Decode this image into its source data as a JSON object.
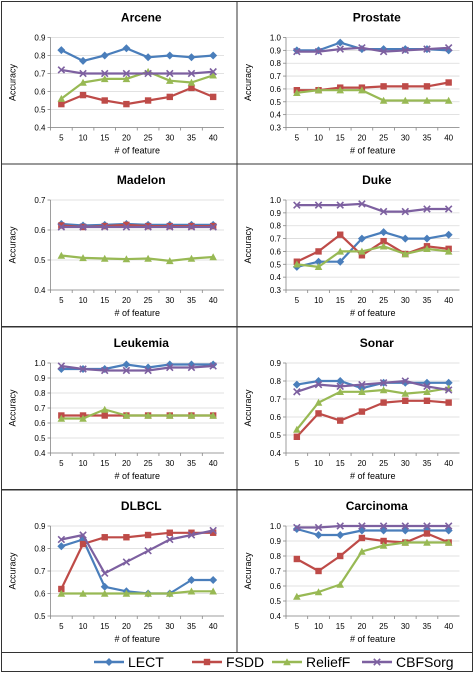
{
  "colors": {
    "LECT": "#4a7ebb",
    "FSDD": "#be4b48",
    "ReliefF": "#98b954",
    "CBFSorg": "#7d60a0",
    "border": "#333333",
    "grid": "#d9d9d9",
    "axis": "#868686"
  },
  "legend": {
    "entries": [
      "LECT",
      "FSDD",
      "ReliefF",
      "CBFSorg"
    ],
    "placement": "bottom"
  },
  "chart_data": [
    {
      "type": "line",
      "title": "Arcene",
      "xlabel": "# of feature",
      "ylabel": "Accuracy",
      "x": [
        "5",
        "10",
        "15",
        "20",
        "25",
        "30",
        "35",
        "40"
      ],
      "ylim": [
        0.4,
        0.9
      ],
      "yticks": [
        "0.4",
        "0.5",
        "0.6",
        "0.7",
        "0.8",
        "0.9"
      ],
      "grid": true,
      "series": [
        {
          "name": "LECT",
          "values": [
            0.83,
            0.77,
            0.8,
            0.84,
            0.79,
            0.8,
            0.79,
            0.8
          ]
        },
        {
          "name": "FSDD",
          "values": [
            0.53,
            0.58,
            0.55,
            0.53,
            0.55,
            0.57,
            0.62,
            0.57
          ]
        },
        {
          "name": "ReliefF",
          "values": [
            0.56,
            0.65,
            0.67,
            0.67,
            0.71,
            0.66,
            0.65,
            0.69
          ]
        },
        {
          "name": "CBFSorg",
          "values": [
            0.72,
            0.7,
            0.7,
            0.7,
            0.7,
            0.7,
            0.7,
            0.71
          ]
        }
      ]
    },
    {
      "type": "line",
      "title": "Prostate",
      "xlabel": "# of feature",
      "ylabel": "Accuracy",
      "x": [
        "5",
        "10",
        "15",
        "20",
        "25",
        "30",
        "35",
        "40"
      ],
      "ylim": [
        0.3,
        1.0
      ],
      "yticks": [
        "0.3",
        "0.4",
        "0.5",
        "0.6",
        "0.7",
        "0.8",
        "0.9",
        "1.0"
      ],
      "grid": true,
      "series": [
        {
          "name": "LECT",
          "values": [
            0.9,
            0.9,
            0.96,
            0.91,
            0.91,
            0.91,
            0.91,
            0.9
          ]
        },
        {
          "name": "FSDD",
          "values": [
            0.59,
            0.59,
            0.61,
            0.61,
            0.62,
            0.62,
            0.62,
            0.65
          ]
        },
        {
          "name": "ReliefF",
          "values": [
            0.57,
            0.59,
            0.59,
            0.59,
            0.51,
            0.51,
            0.51,
            0.51
          ]
        },
        {
          "name": "CBFSorg",
          "values": [
            0.89,
            0.89,
            0.91,
            0.92,
            0.89,
            0.9,
            0.91,
            0.92
          ]
        }
      ]
    },
    {
      "type": "line",
      "title": "Madelon",
      "xlabel": "# of feature",
      "ylabel": "Accuracy",
      "x": [
        "5",
        "10",
        "15",
        "20",
        "25",
        "30",
        "35",
        "40"
      ],
      "ylim": [
        0.4,
        0.7
      ],
      "yticks": [
        "0.4",
        "0.5",
        "0.6",
        "0.7"
      ],
      "grid": true,
      "series": [
        {
          "name": "LECT",
          "values": [
            0.62,
            0.615,
            0.617,
            0.62,
            0.617,
            0.617,
            0.617,
            0.617
          ]
        },
        {
          "name": "FSDD",
          "values": [
            0.615,
            0.61,
            0.613,
            0.617,
            0.613,
            0.613,
            0.613,
            0.613
          ]
        },
        {
          "name": "ReliefF",
          "values": [
            0.515,
            0.507,
            0.505,
            0.503,
            0.505,
            0.497,
            0.505,
            0.51
          ]
        },
        {
          "name": "CBFSorg",
          "values": [
            0.61,
            0.61,
            0.61,
            0.61,
            0.61,
            0.61,
            0.61,
            0.61
          ]
        }
      ]
    },
    {
      "type": "line",
      "title": "Duke",
      "xlabel": "# of feature",
      "ylabel": "Accuracy",
      "x": [
        "5",
        "10",
        "15",
        "20",
        "25",
        "30",
        "35",
        "40"
      ],
      "ylim": [
        0.3,
        1.0
      ],
      "yticks": [
        "0.3",
        "0.4",
        "0.5",
        "0.6",
        "0.7",
        "0.8",
        "0.9",
        "1.0"
      ],
      "grid": true,
      "series": [
        {
          "name": "LECT",
          "values": [
            0.48,
            0.52,
            0.52,
            0.7,
            0.75,
            0.7,
            0.7,
            0.73
          ]
        },
        {
          "name": "FSDD",
          "values": [
            0.52,
            0.6,
            0.73,
            0.57,
            0.68,
            0.58,
            0.64,
            0.62
          ]
        },
        {
          "name": "ReliefF",
          "values": [
            0.5,
            0.48,
            0.6,
            0.6,
            0.64,
            0.58,
            0.62,
            0.6
          ]
        },
        {
          "name": "CBFSorg",
          "values": [
            0.96,
            0.96,
            0.96,
            0.97,
            0.91,
            0.91,
            0.93,
            0.93
          ]
        }
      ]
    },
    {
      "type": "line",
      "title": "Leukemia",
      "xlabel": "# of feature",
      "ylabel": "Accuracy",
      "x": [
        "5",
        "10",
        "15",
        "20",
        "25",
        "30",
        "35",
        "40"
      ],
      "ylim": [
        0.4,
        1.0
      ],
      "yticks": [
        "0.4",
        "0.5",
        "0.6",
        "0.7",
        "0.8",
        "0.9",
        "1.0"
      ],
      "grid": true,
      "series": [
        {
          "name": "LECT",
          "values": [
            0.96,
            0.96,
            0.96,
            0.99,
            0.97,
            0.99,
            0.99,
            0.99
          ]
        },
        {
          "name": "FSDD",
          "values": [
            0.65,
            0.65,
            0.65,
            0.65,
            0.65,
            0.65,
            0.65,
            0.65
          ]
        },
        {
          "name": "ReliefF",
          "values": [
            0.63,
            0.63,
            0.69,
            0.65,
            0.65,
            0.65,
            0.65,
            0.65
          ]
        },
        {
          "name": "CBFSorg",
          "values": [
            0.98,
            0.96,
            0.95,
            0.95,
            0.95,
            0.97,
            0.97,
            0.98
          ]
        }
      ]
    },
    {
      "type": "line",
      "title": "Sonar",
      "xlabel": "# of feature",
      "ylabel": "Accuracy",
      "x": [
        "5",
        "10",
        "15",
        "20",
        "25",
        "30",
        "35",
        "40"
      ],
      "ylim": [
        0.4,
        0.9
      ],
      "yticks": [
        "0.4",
        "0.5",
        "0.6",
        "0.7",
        "0.8",
        "0.9"
      ],
      "grid": true,
      "series": [
        {
          "name": "LECT",
          "values": [
            0.78,
            0.8,
            0.8,
            0.76,
            0.79,
            0.79,
            0.79,
            0.79
          ]
        },
        {
          "name": "FSDD",
          "values": [
            0.49,
            0.62,
            0.58,
            0.63,
            0.68,
            0.69,
            0.69,
            0.68
          ]
        },
        {
          "name": "ReliefF",
          "values": [
            0.53,
            0.68,
            0.74,
            0.74,
            0.75,
            0.73,
            0.74,
            0.76
          ]
        },
        {
          "name": "CBFSorg",
          "values": [
            0.74,
            0.78,
            0.77,
            0.78,
            0.79,
            0.8,
            0.77,
            0.75
          ]
        }
      ]
    },
    {
      "type": "line",
      "title": "DLBCL",
      "xlabel": "# of feature",
      "ylabel": "Accuracy",
      "x": [
        "5",
        "10",
        "15",
        "20",
        "25",
        "30",
        "35",
        "40"
      ],
      "ylim": [
        0.5,
        0.9
      ],
      "yticks": [
        "0.5",
        "0.6",
        "0.7",
        "0.8",
        "0.9"
      ],
      "grid": true,
      "series": [
        {
          "name": "LECT",
          "values": [
            0.81,
            0.84,
            0.63,
            0.61,
            0.6,
            0.6,
            0.66,
            0.66
          ]
        },
        {
          "name": "FSDD",
          "values": [
            0.62,
            0.82,
            0.85,
            0.85,
            0.86,
            0.87,
            0.87,
            0.87
          ]
        },
        {
          "name": "ReliefF",
          "values": [
            0.6,
            0.6,
            0.6,
            0.6,
            0.6,
            0.6,
            0.61,
            0.61
          ]
        },
        {
          "name": "CBFSorg",
          "values": [
            0.84,
            0.86,
            0.69,
            0.74,
            0.79,
            0.84,
            0.86,
            0.88
          ]
        }
      ]
    },
    {
      "type": "line",
      "title": "Carcinoma",
      "xlabel": "# of feature",
      "ylabel": "Accuracy",
      "x": [
        "5",
        "10",
        "15",
        "20",
        "25",
        "30",
        "35",
        "40"
      ],
      "ylim": [
        0.4,
        1.0
      ],
      "yticks": [
        "0.4",
        "0.5",
        "0.6",
        "0.7",
        "0.8",
        "0.9",
        "1.0"
      ],
      "grid": true,
      "series": [
        {
          "name": "LECT",
          "values": [
            0.98,
            0.94,
            0.94,
            0.97,
            0.97,
            0.97,
            0.97,
            0.97
          ]
        },
        {
          "name": "FSDD",
          "values": [
            0.78,
            0.7,
            0.8,
            0.92,
            0.9,
            0.89,
            0.95,
            0.89
          ]
        },
        {
          "name": "ReliefF",
          "values": [
            0.53,
            0.56,
            0.61,
            0.83,
            0.87,
            0.89,
            0.89,
            0.89
          ]
        },
        {
          "name": "CBFSorg",
          "values": [
            0.99,
            0.99,
            1.0,
            1.0,
            1.0,
            1.0,
            1.0,
            1.0
          ]
        }
      ]
    }
  ]
}
